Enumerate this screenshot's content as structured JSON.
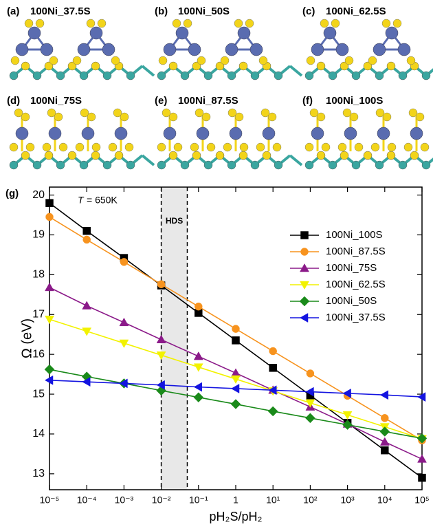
{
  "panels": [
    {
      "label": "(a)",
      "name": "100Ni_37.5S"
    },
    {
      "label": "(b)",
      "name": "100Ni_50S"
    },
    {
      "label": "(c)",
      "name": "100Ni_62.5S"
    },
    {
      "label": "(d)",
      "name": "100Ni_75S"
    },
    {
      "label": "(e)",
      "name": "100Ni_87.5S"
    },
    {
      "label": "(f)",
      "name": "100Ni_100S"
    }
  ],
  "chart_data": {
    "type": "line",
    "panel_label": "(g)",
    "x_label": "pH₂S/pH₂",
    "y_label": "Ω (eV)",
    "annotation": {
      "italic": "T",
      "text": "= 650K"
    },
    "shaded_region": {
      "label": "HDS",
      "xlim": [
        0.01,
        0.05
      ]
    },
    "log_x": true,
    "legend": "upper right",
    "xlim": [
      1e-05,
      100000
    ],
    "ylim": [
      12.6,
      20.2
    ],
    "xticks": [
      {
        "value": 1e-05,
        "label": "10⁻⁵"
      },
      {
        "value": 0.0001,
        "label": "10⁻⁴"
      },
      {
        "value": 0.001,
        "label": "10⁻³"
      },
      {
        "value": 0.01,
        "label": "10⁻²"
      },
      {
        "value": 0.1,
        "label": "10⁻¹"
      },
      1,
      {
        "value": 10,
        "label": "10¹"
      },
      {
        "value": 100,
        "label": "10²"
      },
      {
        "value": 1000,
        "label": "10³"
      },
      {
        "value": 10000,
        "label": "10⁴"
      },
      {
        "value": 100000,
        "label": "10⁵"
      }
    ],
    "yticks": [
      13,
      14,
      15,
      16,
      17,
      18,
      19,
      20
    ],
    "x": [
      1e-05,
      0.0001,
      0.001,
      0.01,
      0.1,
      1,
      10,
      100,
      1000,
      10000,
      100000
    ],
    "series": [
      {
        "name": "100Ni_100S",
        "color": "#000000",
        "marker": "square",
        "values": [
          19.8,
          19.1,
          18.42,
          17.73,
          17.04,
          16.35,
          15.66,
          14.97,
          14.28,
          13.59,
          12.9
        ]
      },
      {
        "name": "100Ni_87.5S",
        "color": "#f7931e",
        "marker": "circle",
        "values": [
          19.45,
          18.88,
          18.32,
          17.76,
          17.2,
          16.64,
          16.08,
          15.52,
          14.96,
          14.4,
          13.84
        ]
      },
      {
        "name": "100Ni_75S",
        "color": "#8b1a89",
        "marker": "triangle-up",
        "values": [
          17.68,
          17.22,
          16.8,
          16.37,
          15.95,
          15.53,
          15.1,
          14.68,
          14.25,
          13.8,
          13.37
        ]
      },
      {
        "name": "100Ni_62.5S",
        "color": "#f2f200",
        "marker": "triangle-down",
        "values": [
          16.88,
          16.58,
          16.28,
          15.98,
          15.68,
          15.38,
          15.08,
          14.78,
          14.48,
          14.18,
          13.88
        ]
      },
      {
        "name": "100Ni_50S",
        "color": "#1a8a1a",
        "marker": "diamond",
        "values": [
          15.62,
          15.44,
          15.27,
          15.09,
          14.92,
          14.75,
          14.57,
          14.4,
          14.23,
          14.06,
          13.89
        ]
      },
      {
        "name": "100Ni_37.5S",
        "color": "#1414e0",
        "marker": "triangle-left",
        "values": [
          15.35,
          15.31,
          15.27,
          15.23,
          15.18,
          15.14,
          15.1,
          15.06,
          15.02,
          14.98,
          14.93
        ]
      }
    ]
  }
}
